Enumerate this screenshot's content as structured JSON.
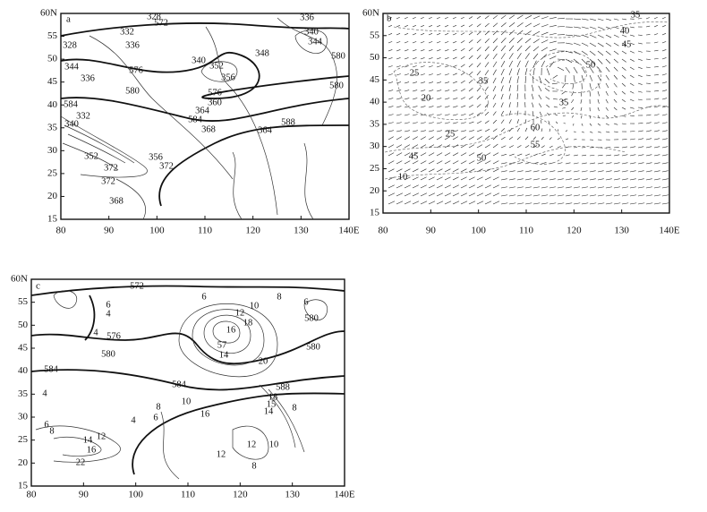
{
  "axes": {
    "x_tick_labels": [
      80,
      90,
      100,
      110,
      120,
      130,
      "140E"
    ],
    "y_tick_labels": [
      15,
      20,
      25,
      30,
      35,
      40,
      45,
      50,
      55,
      "60N"
    ]
  },
  "panels": [
    {
      "label": "a",
      "contour_labels": [
        "328",
        "336",
        "572",
        "332",
        "340",
        "328",
        "336",
        "344",
        "348",
        "580",
        "340",
        "576",
        "344",
        "352",
        "356",
        "336",
        "580",
        "580",
        "576",
        "360",
        "584",
        "332",
        "364",
        "584",
        "588",
        "368",
        "340",
        "364",
        "372",
        "356",
        "352",
        "372",
        "372",
        "368"
      ]
    },
    {
      "label": "b",
      "contour_labels": [
        "35",
        "40",
        "45",
        "50",
        "25",
        "35",
        "20",
        "35",
        "60",
        "25",
        "45",
        "50",
        "10",
        "55"
      ]
    },
    {
      "label": "c",
      "contour_labels": [
        "572",
        "6",
        "10",
        "8",
        "6",
        "6",
        "4",
        "580",
        "12",
        "18",
        "4",
        "576",
        "16",
        "57",
        "580",
        "580",
        "14",
        "20",
        "584",
        "584",
        "588",
        "4",
        "10",
        "8",
        "18",
        "15",
        "14",
        "8",
        "6",
        "16",
        "4",
        "6",
        "8",
        "14",
        "12",
        "16",
        "12",
        "10",
        "12",
        "22",
        "8"
      ]
    }
  ]
}
